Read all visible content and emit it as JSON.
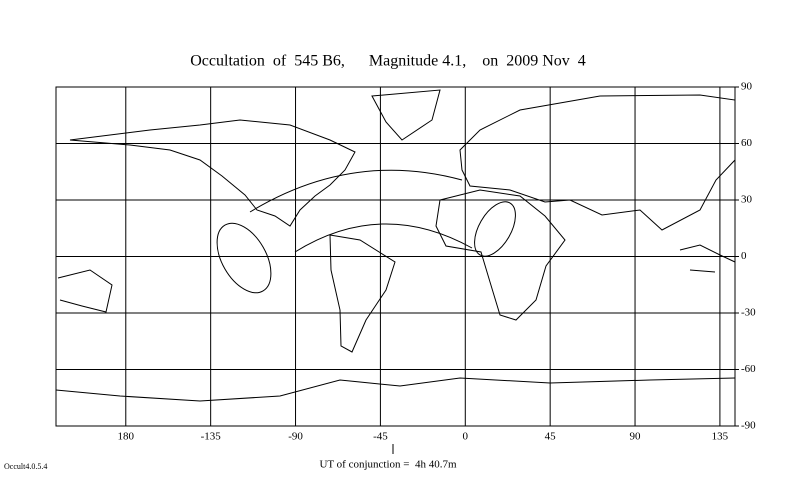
{
  "chart_data": {
    "type": "map",
    "title": "Occultation  of  545 B6,      Magnitude 4.1,    on  2009 Nov  4",
    "xlim": [
      143,
      503
    ],
    "xticks": [
      180,
      {
        "value": 225,
        "label": "-135"
      },
      {
        "value": 270,
        "label": "-90"
      },
      {
        "value": 315,
        "label": "-45"
      },
      {
        "value": 360,
        "label": "0"
      },
      {
        "value": 405,
        "label": "45"
      },
      {
        "value": 450,
        "label": "90"
      },
      {
        "value": 495,
        "label": "135"
      }
    ],
    "ylim": [
      -90,
      90
    ],
    "yticks": [
      90,
      60,
      30,
      0,
      -30,
      -60,
      -90
    ],
    "grid": true,
    "footnote": "UT of conjunction =  4h 40.7m",
    "version": "Occult4.0.5.4"
  }
}
